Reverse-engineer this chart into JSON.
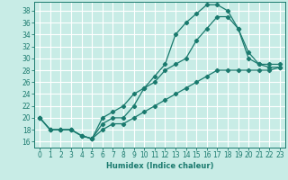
{
  "xlabel": "Humidex (Indice chaleur)",
  "xlim": [
    -0.5,
    23.5
  ],
  "ylim": [
    15.0,
    39.5
  ],
  "xticks": [
    0,
    1,
    2,
    3,
    4,
    5,
    6,
    7,
    8,
    9,
    10,
    11,
    12,
    13,
    14,
    15,
    16,
    17,
    18,
    19,
    20,
    21,
    22,
    23
  ],
  "yticks": [
    16,
    18,
    20,
    22,
    24,
    26,
    28,
    30,
    32,
    34,
    36,
    38
  ],
  "bg_color": "#c8ece6",
  "grid_color": "#ffffff",
  "line_color": "#1a7a6e",
  "line1_x": [
    0,
    1,
    2,
    3,
    4,
    5,
    6,
    7,
    8,
    9,
    10,
    11,
    12,
    13,
    14,
    15,
    16,
    17,
    18,
    19,
    20,
    21,
    22,
    23
  ],
  "line1_y": [
    20,
    18,
    18,
    18,
    17,
    16.5,
    19,
    20,
    20,
    22,
    25,
    27,
    29,
    34,
    36,
    37.5,
    39,
    39,
    38,
    35,
    31,
    29,
    28.5,
    28.5
  ],
  "line2_x": [
    0,
    1,
    2,
    3,
    4,
    5,
    6,
    7,
    8,
    9,
    10,
    11,
    12,
    13,
    14,
    15,
    16,
    17,
    18,
    19,
    20,
    21,
    22,
    23
  ],
  "line2_y": [
    20,
    18,
    18,
    18,
    17,
    16.5,
    20,
    21,
    22,
    24,
    25,
    26,
    28,
    29,
    30,
    33,
    35,
    37,
    37,
    35,
    30,
    29,
    29,
    29
  ],
  "line3_x": [
    0,
    1,
    2,
    3,
    4,
    5,
    6,
    7,
    8,
    9,
    10,
    11,
    12,
    13,
    14,
    15,
    16,
    17,
    18,
    19,
    20,
    21,
    22,
    23
  ],
  "line3_y": [
    20,
    18,
    18,
    18,
    17,
    16.5,
    18,
    19,
    19,
    20,
    21,
    22,
    23,
    24,
    25,
    26,
    27,
    28,
    28,
    28,
    28,
    28,
    28,
    28.5
  ],
  "marker_size": 2.2,
  "line_width": 0.9,
  "tick_fontsize": 5.5,
  "xlabel_fontsize": 6.0
}
